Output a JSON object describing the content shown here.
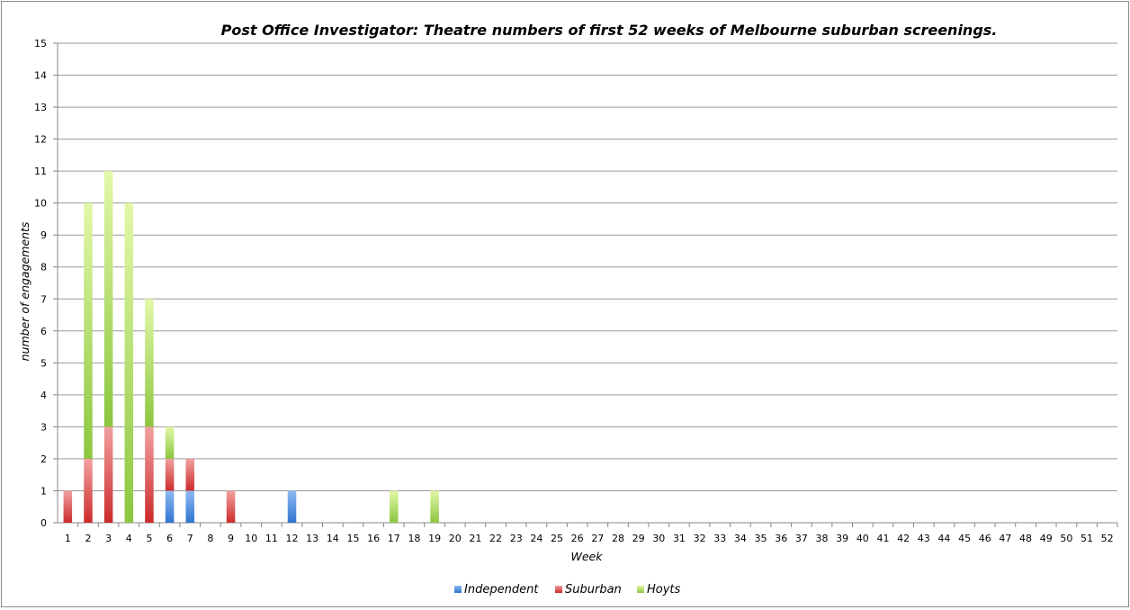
{
  "chart_data": {
    "type": "bar",
    "stacked": true,
    "title": "Post Office Investigator: Theatre numbers of first 52 weeks of Melbourne suburban screenings.",
    "xlabel": "Week",
    "ylabel": "number of engagements",
    "ylim": [
      0,
      15
    ],
    "yticks": [
      "0",
      "1",
      "2",
      "3",
      "4",
      "5",
      "6",
      "7",
      "8",
      "9",
      "10",
      "11",
      "12",
      "13",
      "14",
      "15"
    ],
    "grid": true,
    "legend_position": "bottom",
    "categories": [
      "1",
      "2",
      "3",
      "4",
      "5",
      "6",
      "7",
      "8",
      "9",
      "10",
      "11",
      "12",
      "13",
      "14",
      "15",
      "16",
      "17",
      "18",
      "19",
      "20",
      "21",
      "22",
      "23",
      "24",
      "25",
      "26",
      "27",
      "28",
      "29",
      "30",
      "31",
      "32",
      "33",
      "34",
      "35",
      "36",
      "37",
      "38",
      "39",
      "40",
      "41",
      "42",
      "43",
      "44",
      "45",
      "46",
      "47",
      "48",
      "49",
      "50",
      "51",
      "52"
    ],
    "series": [
      {
        "name": "Independent",
        "color": "#4a8ee0",
        "values": [
          0,
          0,
          0,
          0,
          0,
          1,
          1,
          0,
          0,
          0,
          0,
          1,
          0,
          0,
          0,
          0,
          0,
          0,
          0,
          0,
          0,
          0,
          0,
          0,
          0,
          0,
          0,
          0,
          0,
          0,
          0,
          0,
          0,
          0,
          0,
          0,
          0,
          0,
          0,
          0,
          0,
          0,
          0,
          0,
          0,
          0,
          0,
          0,
          0,
          0,
          0,
          0
        ]
      },
      {
        "name": "Suburban",
        "color": "#dd3b3b",
        "values": [
          1,
          2,
          3,
          0,
          3,
          1,
          1,
          0,
          1,
          0,
          0,
          0,
          0,
          0,
          0,
          0,
          0,
          0,
          0,
          0,
          0,
          0,
          0,
          0,
          0,
          0,
          0,
          0,
          0,
          0,
          0,
          0,
          0,
          0,
          0,
          0,
          0,
          0,
          0,
          0,
          0,
          0,
          0,
          0,
          0,
          0,
          0,
          0,
          0,
          0,
          0,
          0
        ]
      },
      {
        "name": "Hoyts",
        "color": "#8cc63f",
        "values": [
          0,
          8,
          8,
          10,
          4,
          1,
          0,
          0,
          0,
          0,
          0,
          0,
          0,
          0,
          0,
          0,
          1,
          0,
          1,
          0,
          0,
          0,
          0,
          0,
          0,
          0,
          0,
          0,
          0,
          0,
          0,
          0,
          0,
          0,
          0,
          0,
          0,
          0,
          0,
          0,
          0,
          0,
          0,
          0,
          0,
          0,
          0,
          0,
          0,
          0,
          0,
          0
        ]
      }
    ]
  }
}
